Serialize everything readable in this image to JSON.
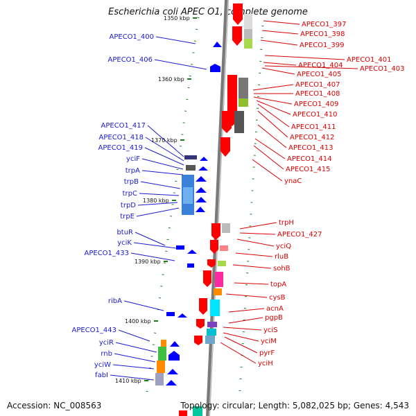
{
  "title": "Escherichia coli APEC O1, complete genome",
  "footer": {
    "accession": "Accession: NC_008563",
    "stats": "Topology: circular; Length: 5,082,025 bp; Genes: 4,543"
  },
  "colors": {
    "forward": "#ff0000",
    "reverse": "#0000ff",
    "leftLabel": "#1a1ad2",
    "rightLabel": "#d80000",
    "marker": "#1e7a1e"
  },
  "ticks": [
    "1350 kbp",
    "1360 kbp",
    "1370 kbp",
    "1380 kbp",
    "1390 kbp",
    "1400 kbp",
    "1410 kbp"
  ],
  "left_genes": [
    "APECO1_400",
    "APECO1_406",
    "APECO1_417",
    "APECO1_418",
    "APECO1_419",
    "yciF",
    "trpA",
    "trpB",
    "trpC",
    "trpD",
    "trpE",
    "btuR",
    "yciK",
    "APECO1_433",
    "ribA",
    "APECO1_443",
    "yciR",
    "rnb",
    "yciW",
    "fabI"
  ],
  "right_genes": [
    "APECO1_397",
    "APECO1_398",
    "APECO1_399",
    "APECO1_401",
    "APECO1_404",
    "APECO1_403",
    "APECO1_405",
    "APECO1_407",
    "APECO1_408",
    "APECO1_409",
    "APECO1_410",
    "APECO1_411",
    "APECO1_412",
    "APECO1_413",
    "APECO1_414",
    "APECO1_415",
    "ynaC",
    "trpH",
    "APECO1_427",
    "yciQ",
    "rluB",
    "sohB",
    "topA",
    "cysB",
    "acnA",
    "pgpB",
    "yciS",
    "yciM",
    "pyrF",
    "yciH"
  ]
}
